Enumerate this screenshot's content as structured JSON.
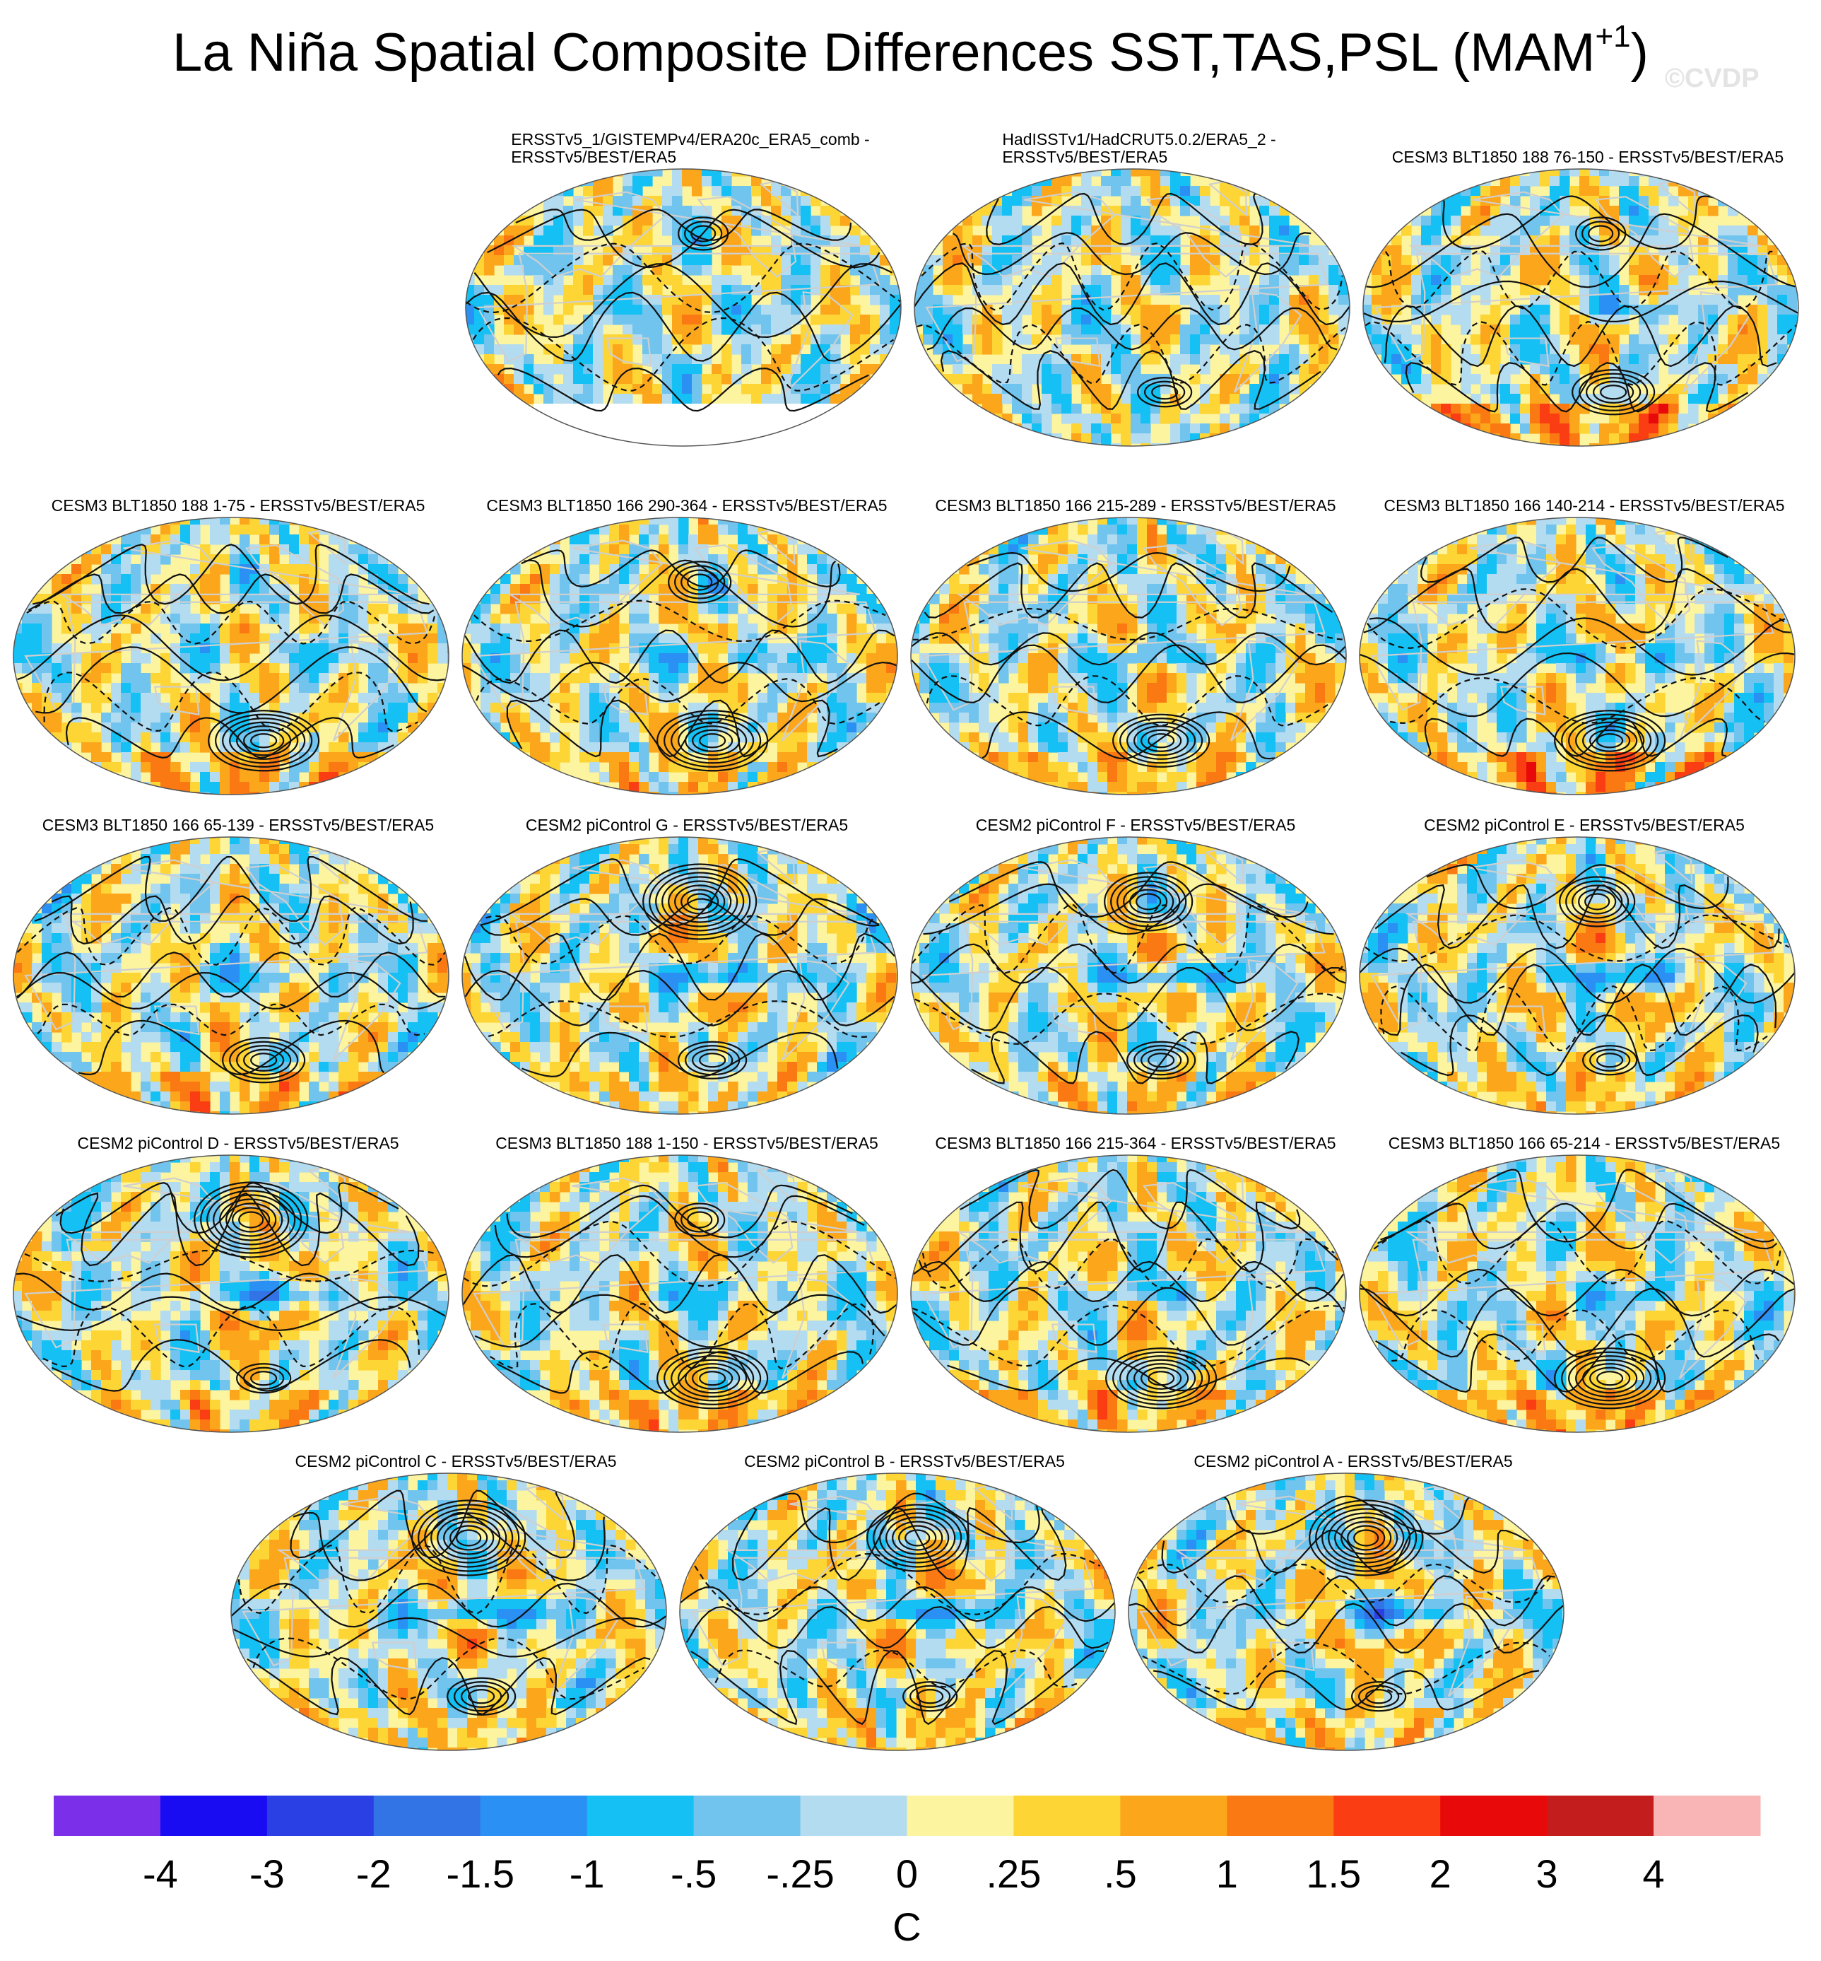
{
  "title": "La Niña Spatial Composite Differences SST,TAS,PSL (MAM",
  "title_sup": "+1",
  "title_close": ")",
  "watermark": "©CVDP",
  "chart_data": {
    "type": "heatmap",
    "variables": [
      "SST",
      "TAS",
      "PSL"
    ],
    "season": "MAM+1",
    "projection": "Robinson (global)",
    "panels": [
      {
        "title": "ERSSTv5_1/GISTEMPv4/ERA20c_ERA5_comb - ERSSTv5/BEST/ERA5",
        "title_lines": [
          "ERSSTv5_1/GISTEMPv4/ERA20c_ERA5_comb -",
          "ERSSTv5/BEST/ERA5"
        ],
        "seed": 11,
        "enso": 0.15,
        "so_high": 0.0,
        "so_warm": 0.0,
        "np_high": 0.2,
        "missing_south": true
      },
      {
        "title": "HadISSTv1/HadCRUT5.0.2/ERA5_2 - ERSSTv5/BEST/ERA5",
        "title_lines": [
          "HadISSTv1/HadCRUT5.0.2/ERA5_2 -",
          "ERSSTv5/BEST/ERA5"
        ],
        "seed": 23,
        "enso": 0.0,
        "so_high": 0.1,
        "so_warm": 0.0,
        "np_high": 0.0,
        "missing_south": false
      },
      {
        "title": "CESM3 BLT1850 188 76-150 - ERSSTv5/BEST/ERA5",
        "title_lines": [
          "CESM3 BLT1850 188 76-150 - ERSSTv5/BEST/ERA5"
        ],
        "seed": 37,
        "enso": 0.5,
        "so_high": 0.5,
        "so_warm": 1.0,
        "np_high": 0.2,
        "missing_south": false
      },
      {
        "title": "CESM3 BLT1850 188 1-75 - ERSSTv5/BEST/ERA5",
        "title_lines": [
          "CESM3 BLT1850 188 1-75 - ERSSTv5/BEST/ERA5"
        ],
        "seed": 41,
        "enso": 0.4,
        "so_high": 1.0,
        "so_warm": 0.7,
        "np_high": 0.0,
        "missing_south": false
      },
      {
        "title": "CESM3 BLT1850 166 290-364 - ERSSTv5/BEST/ERA5",
        "title_lines": [
          "CESM3 BLT1850 166 290-364 - ERSSTv5/BEST/ERA5"
        ],
        "seed": 53,
        "enso": 0.6,
        "so_high": 1.0,
        "so_warm": 0.5,
        "np_high": 0.3,
        "missing_south": false
      },
      {
        "title": "CESM3 BLT1850 166 215-289 - ERSSTv5/BEST/ERA5",
        "title_lines": [
          "CESM3 BLT1850 166 215-289 - ERSSTv5/BEST/ERA5"
        ],
        "seed": 67,
        "enso": 0.5,
        "so_high": 0.8,
        "so_warm": 0.6,
        "np_high": 0.0,
        "missing_south": false
      },
      {
        "title": "CESM3 BLT1850 166 140-214 - ERSSTv5/BEST/ERA5",
        "title_lines": [
          "CESM3 BLT1850 166 140-214 - ERSSTv5/BEST/ERA5"
        ],
        "seed": 71,
        "enso": 0.6,
        "so_high": 1.0,
        "so_warm": 1.0,
        "np_high": 0.0,
        "missing_south": false
      },
      {
        "title": "CESM3 BLT1850 166 65-139 - ERSSTv5/BEST/ERA5",
        "title_lines": [
          "CESM3 BLT1850 166 65-139 - ERSSTv5/BEST/ERA5"
        ],
        "seed": 83,
        "enso": 0.5,
        "so_high": 0.5,
        "so_warm": 0.7,
        "np_high": 0.0,
        "missing_south": false
      },
      {
        "title": "CESM2 piControl G - ERSSTv5/BEST/ERA5",
        "title_lines": [
          "CESM2 piControl G - ERSSTv5/BEST/ERA5"
        ],
        "seed": 97,
        "enso": 1.0,
        "so_high": 0.3,
        "so_warm": 0.4,
        "np_high": 1.0,
        "missing_south": false
      },
      {
        "title": "CESM2 piControl F - ERSSTv5/BEST/ERA5",
        "title_lines": [
          "CESM2 piControl F - ERSSTv5/BEST/ERA5"
        ],
        "seed": 103,
        "enso": 1.0,
        "so_high": 0.3,
        "so_warm": 0.4,
        "np_high": 0.7,
        "missing_south": false
      },
      {
        "title": "CESM2 piControl E - ERSSTv5/BEST/ERA5",
        "title_lines": [
          "CESM2 piControl E - ERSSTv5/BEST/ERA5"
        ],
        "seed": 109,
        "enso": 1.0,
        "so_high": 0.2,
        "so_warm": 0.4,
        "np_high": 0.5,
        "missing_south": false
      },
      {
        "title": "CESM2 piControl D - ERSSTv5/BEST/ERA5",
        "title_lines": [
          "CESM2 piControl D - ERSSTv5/BEST/ERA5"
        ],
        "seed": 113,
        "enso": 1.0,
        "so_high": 0.2,
        "so_warm": 0.5,
        "np_high": 1.0,
        "missing_south": false
      },
      {
        "title": "CESM3 BLT1850 188 1-150 - ERSSTv5/BEST/ERA5",
        "title_lines": [
          "CESM3 BLT1850 188 1-150 - ERSSTv5/BEST/ERA5"
        ],
        "seed": 127,
        "enso": 0.5,
        "so_high": 0.9,
        "so_warm": 0.7,
        "np_high": 0.1,
        "missing_south": false
      },
      {
        "title": "CESM3 BLT1850 166 215-364 - ERSSTv5/BEST/ERA5",
        "title_lines": [
          "CESM3 BLT1850 166 215-364 - ERSSTv5/BEST/ERA5"
        ],
        "seed": 131,
        "enso": 0.5,
        "so_high": 0.9,
        "so_warm": 0.6,
        "np_high": 0.0,
        "missing_south": false
      },
      {
        "title": "CESM3 BLT1850 166 65-214 - ERSSTv5/BEST/ERA5",
        "title_lines": [
          "CESM3 BLT1850 166 65-214 - ERSSTv5/BEST/ERA5"
        ],
        "seed": 139,
        "enso": 0.5,
        "so_high": 0.9,
        "so_warm": 0.8,
        "np_high": 0.0,
        "missing_south": false
      },
      {
        "title": "CESM2 piControl C - ERSSTv5/BEST/ERA5",
        "title_lines": [
          "CESM2 piControl C - ERSSTv5/BEST/ERA5"
        ],
        "seed": 149,
        "enso": 1.0,
        "so_high": 0.3,
        "so_warm": 0.4,
        "np_high": 1.0,
        "missing_south": false
      },
      {
        "title": "CESM2 piControl B - ERSSTv5/BEST/ERA5",
        "title_lines": [
          "CESM2 piControl B - ERSSTv5/BEST/ERA5"
        ],
        "seed": 151,
        "enso": 1.0,
        "so_high": 0.2,
        "so_warm": 0.4,
        "np_high": 0.8,
        "missing_south": false
      },
      {
        "title": "CESM2 piControl A - ERSSTv5/BEST/ERA5",
        "title_lines": [
          "CESM2 piControl A - ERSSTv5/BEST/ERA5"
        ],
        "seed": 157,
        "enso": 1.0,
        "so_high": 0.2,
        "so_warm": 0.4,
        "np_high": 1.0,
        "missing_south": false
      }
    ],
    "colorbar": {
      "units": "C",
      "labels": [
        "-4",
        "-3",
        "-2",
        "-1.5",
        "-1",
        "-.5",
        "-.25",
        "0",
        ".25",
        ".5",
        "1",
        "1.5",
        "2",
        "3",
        "4"
      ],
      "colors": [
        "#7b2fe8",
        "#1a0cf2",
        "#2a40e4",
        "#3273e6",
        "#2a90f4",
        "#14c0f4",
        "#70c4ee",
        "#b4dcf0",
        "#fdf4a0",
        "#fdd535",
        "#fca71b",
        "#fb7912",
        "#fb3d14",
        "#e80a0a",
        "#c41d1d",
        "#f9b5b5"
      ]
    }
  }
}
